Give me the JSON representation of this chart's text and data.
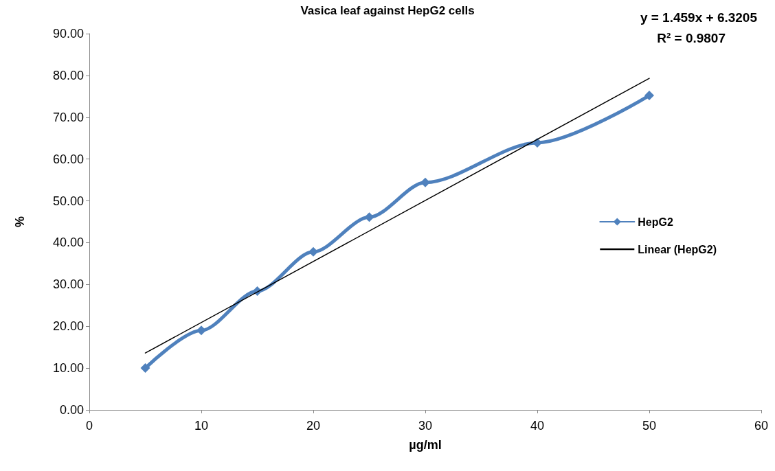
{
  "chart_data": {
    "type": "line",
    "title": "Vasica leaf against HepG2 cells",
    "xlabel": "µg/ml",
    "ylabel": "%",
    "x": [
      5,
      10,
      15,
      20,
      25,
      30,
      40,
      50
    ],
    "series": [
      {
        "name": "HepG2",
        "color": "#4f81bd",
        "values": [
          10.0,
          19.0,
          28.4,
          37.8,
          46.1,
          54.4,
          63.9,
          75.2
        ]
      },
      {
        "name": "Linear (HepG2)",
        "type": "line",
        "marker": "none",
        "color": "#000000",
        "x": [
          5,
          50
        ],
        "values": [
          13.6,
          79.3
        ]
      }
    ],
    "xlim": [
      0,
      60
    ],
    "xticks": [
      0,
      10,
      20,
      30,
      40,
      50,
      60
    ],
    "ylim": [
      0,
      90
    ],
    "yticks": [
      {
        "value": 0,
        "label": "0.00"
      },
      {
        "value": 10,
        "label": "10.00"
      },
      {
        "value": 20,
        "label": "20.00"
      },
      {
        "value": 30,
        "label": "30.00"
      },
      {
        "value": 40,
        "label": "40.00"
      },
      {
        "value": 50,
        "label": "50.00"
      },
      {
        "value": 60,
        "label": "60.00"
      },
      {
        "value": 70,
        "label": "70.00"
      },
      {
        "value": 80,
        "label": "80.00"
      },
      {
        "value": 90,
        "label": "90.00"
      }
    ],
    "annotations": [
      "y = 1.459x + 6.3205",
      "R² = 0.9807"
    ],
    "marker": "diamond",
    "legend": "right",
    "grid": false
  }
}
